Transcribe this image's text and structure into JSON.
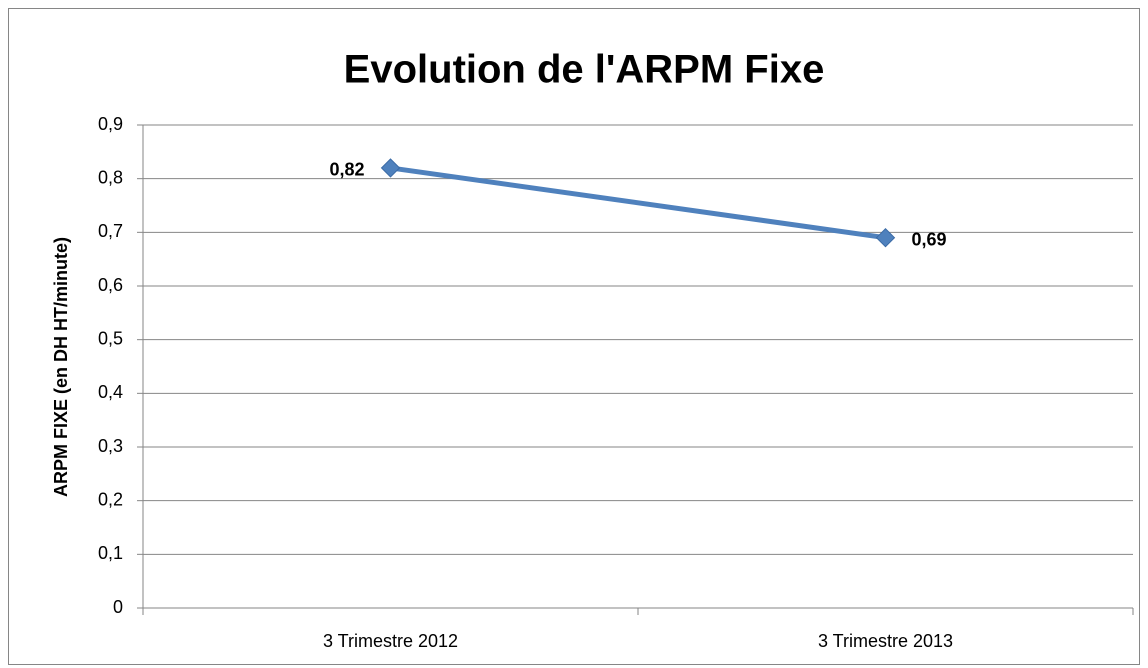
{
  "chart_data": {
    "type": "line",
    "title": "Evolution de l'ARPM Fixe",
    "y_label": "ARPM FIXE (en DH HT/minute)",
    "categories": [
      "3 Trimestre 2012",
      "3 Trimestre 2013"
    ],
    "series": [
      {
        "name": "ARPM Fixe",
        "color": "#4f81bd",
        "values": [
          0.82,
          0.69
        ],
        "value_labels": [
          "0,82",
          "0,69"
        ]
      }
    ],
    "ylim": [
      0,
      0.9
    ],
    "yticks": [
      0,
      {
        "value": 0.1,
        "label": "0,1"
      },
      {
        "value": 0.2,
        "label": "0,2"
      },
      {
        "value": 0.3,
        "label": "0,3"
      },
      {
        "value": 0.4,
        "label": "0,4"
      },
      {
        "value": 0.5,
        "label": "0,5"
      },
      {
        "value": 0.6,
        "label": "0,6"
      },
      {
        "value": 0.7,
        "label": "0,7"
      },
      {
        "value": 0.8,
        "label": "0,8"
      },
      {
        "value": 0.9,
        "label": "0,9"
      }
    ],
    "grid": true
  }
}
